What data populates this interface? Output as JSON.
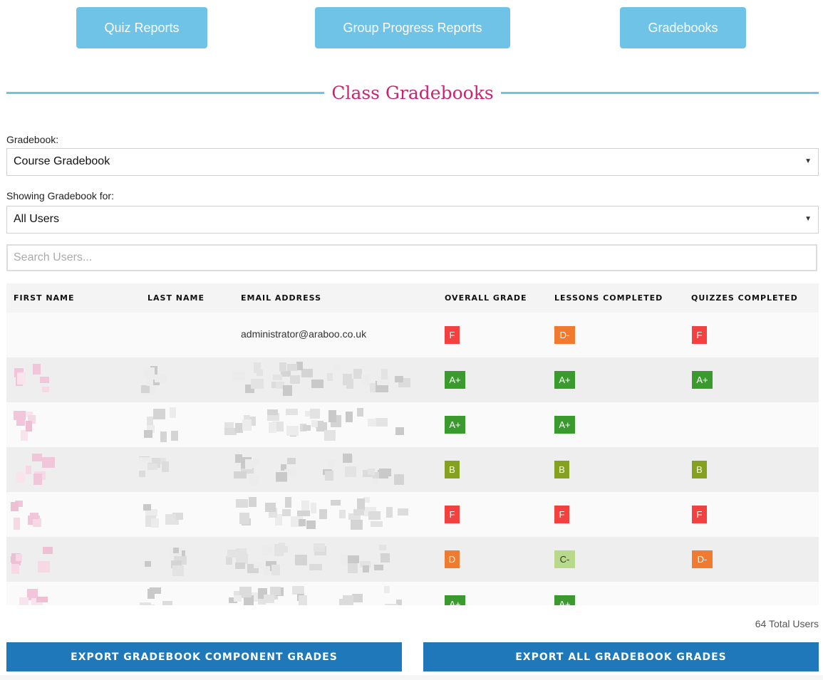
{
  "nav": {
    "quiz_reports": "Quiz Reports",
    "group_progress_reports": "Group Progress Reports",
    "gradebooks": "Gradebooks"
  },
  "page_title": "Class Gradebooks",
  "gradebook_select": {
    "label": "Gradebook:",
    "value": "Course Gradebook"
  },
  "users_select": {
    "label": "Showing Gradebook for:",
    "value": "All Users"
  },
  "search": {
    "placeholder": "Search Users..."
  },
  "table": {
    "headers": {
      "first_name": "FIRST NAME",
      "last_name": "LAST NAME",
      "email": "EMAIL ADDRESS",
      "overall": "OVERALL GRADE",
      "lessons": "LESSONS COMPLETED",
      "quizzes": "QUIZZES COMPLETED"
    },
    "rows": [
      {
        "first": "",
        "last": "",
        "email": "administrator@araboo.co.uk",
        "overall": "F",
        "lessons": "D-",
        "quizzes": "F",
        "redacted": false
      },
      {
        "first": "",
        "last": "",
        "email": "",
        "overall": "A+",
        "lessons": "A+",
        "quizzes": "A+",
        "redacted": true
      },
      {
        "first": "",
        "last": "",
        "email": "",
        "overall": "A+",
        "lessons": "A+",
        "quizzes": "",
        "redacted": true
      },
      {
        "first": "",
        "last": "",
        "email": "",
        "overall": "B",
        "lessons": "B",
        "quizzes": "B",
        "redacted": true
      },
      {
        "first": "",
        "last": "",
        "email": "",
        "overall": "F",
        "lessons": "F",
        "quizzes": "F",
        "redacted": true
      },
      {
        "first": "",
        "last": "",
        "email": "",
        "overall": "D",
        "lessons": "C-",
        "quizzes": "D-",
        "redacted": true
      },
      {
        "first": "",
        "last": "",
        "email": "",
        "overall": "A+",
        "lessons": "A+",
        "quizzes": "",
        "redacted": true
      }
    ]
  },
  "grade_colors": {
    "A+": "#3a9a2e",
    "B": "#86a01f",
    "C-": "#b9d98a",
    "D": "#ef7a30",
    "D-": "#ef7a30",
    "F": "#f2413f"
  },
  "total_users": "64 Total Users",
  "export": {
    "component": "EXPORT GRADEBOOK COMPONENT GRADES",
    "all": "EXPORT ALL GRADEBOOK GRADES"
  },
  "colors": {
    "accent": "#6ec3e6",
    "title": "#cc2473",
    "export": "#1e78b9"
  }
}
